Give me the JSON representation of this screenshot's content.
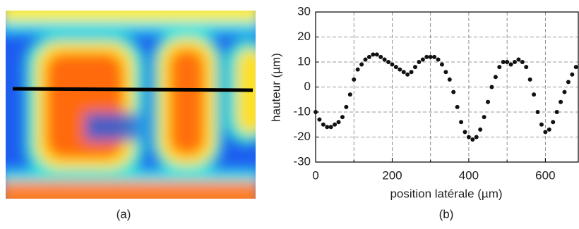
{
  "figure": {
    "captions": [
      "(a)",
      "(b)"
    ]
  },
  "chart_data": {
    "type": "scatter",
    "x_label": "position latérale (µm)",
    "y_label": "hauteur (µm)",
    "color": "#111111",
    "x": [
      0,
      10,
      20,
      30,
      40,
      50,
      60,
      70,
      80,
      90,
      100,
      110,
      120,
      130,
      140,
      150,
      160,
      170,
      180,
      190,
      200,
      210,
      220,
      230,
      240,
      250,
      260,
      270,
      280,
      290,
      300,
      310,
      320,
      330,
      340,
      350,
      360,
      370,
      380,
      390,
      400,
      410,
      420,
      430,
      440,
      450,
      460,
      470,
      480,
      490,
      500,
      510,
      520,
      530,
      540,
      550,
      560,
      570,
      580,
      590,
      600,
      610,
      620,
      630,
      640,
      650,
      660,
      670,
      680
    ],
    "values": [
      -10,
      -13,
      -15,
      -16,
      -16,
      -15,
      -14,
      -12,
      -8,
      -3,
      3,
      7,
      9,
      11,
      12,
      13,
      13,
      12,
      11,
      10,
      9,
      8,
      7,
      6,
      5,
      6,
      8,
      10,
      11,
      12,
      12,
      12,
      11,
      9,
      6,
      3,
      -2,
      -8,
      -14,
      -18,
      -20,
      -21,
      -20,
      -17,
      -12,
      -6,
      0,
      4,
      8,
      10,
      10,
      9,
      10,
      11,
      10,
      8,
      3,
      -3,
      -10,
      -15,
      -18,
      -17,
      -14,
      -10,
      -6,
      -2,
      2,
      5,
      8
    ],
    "xlim": [
      0,
      686
    ],
    "xticks": [
      0,
      200,
      400,
      600
    ],
    "xminor": [
      100,
      300,
      500
    ],
    "ylim": [
      -30,
      30
    ],
    "yticks": [
      -30,
      -20,
      -10,
      0,
      10,
      20,
      30
    ],
    "grid": true
  }
}
